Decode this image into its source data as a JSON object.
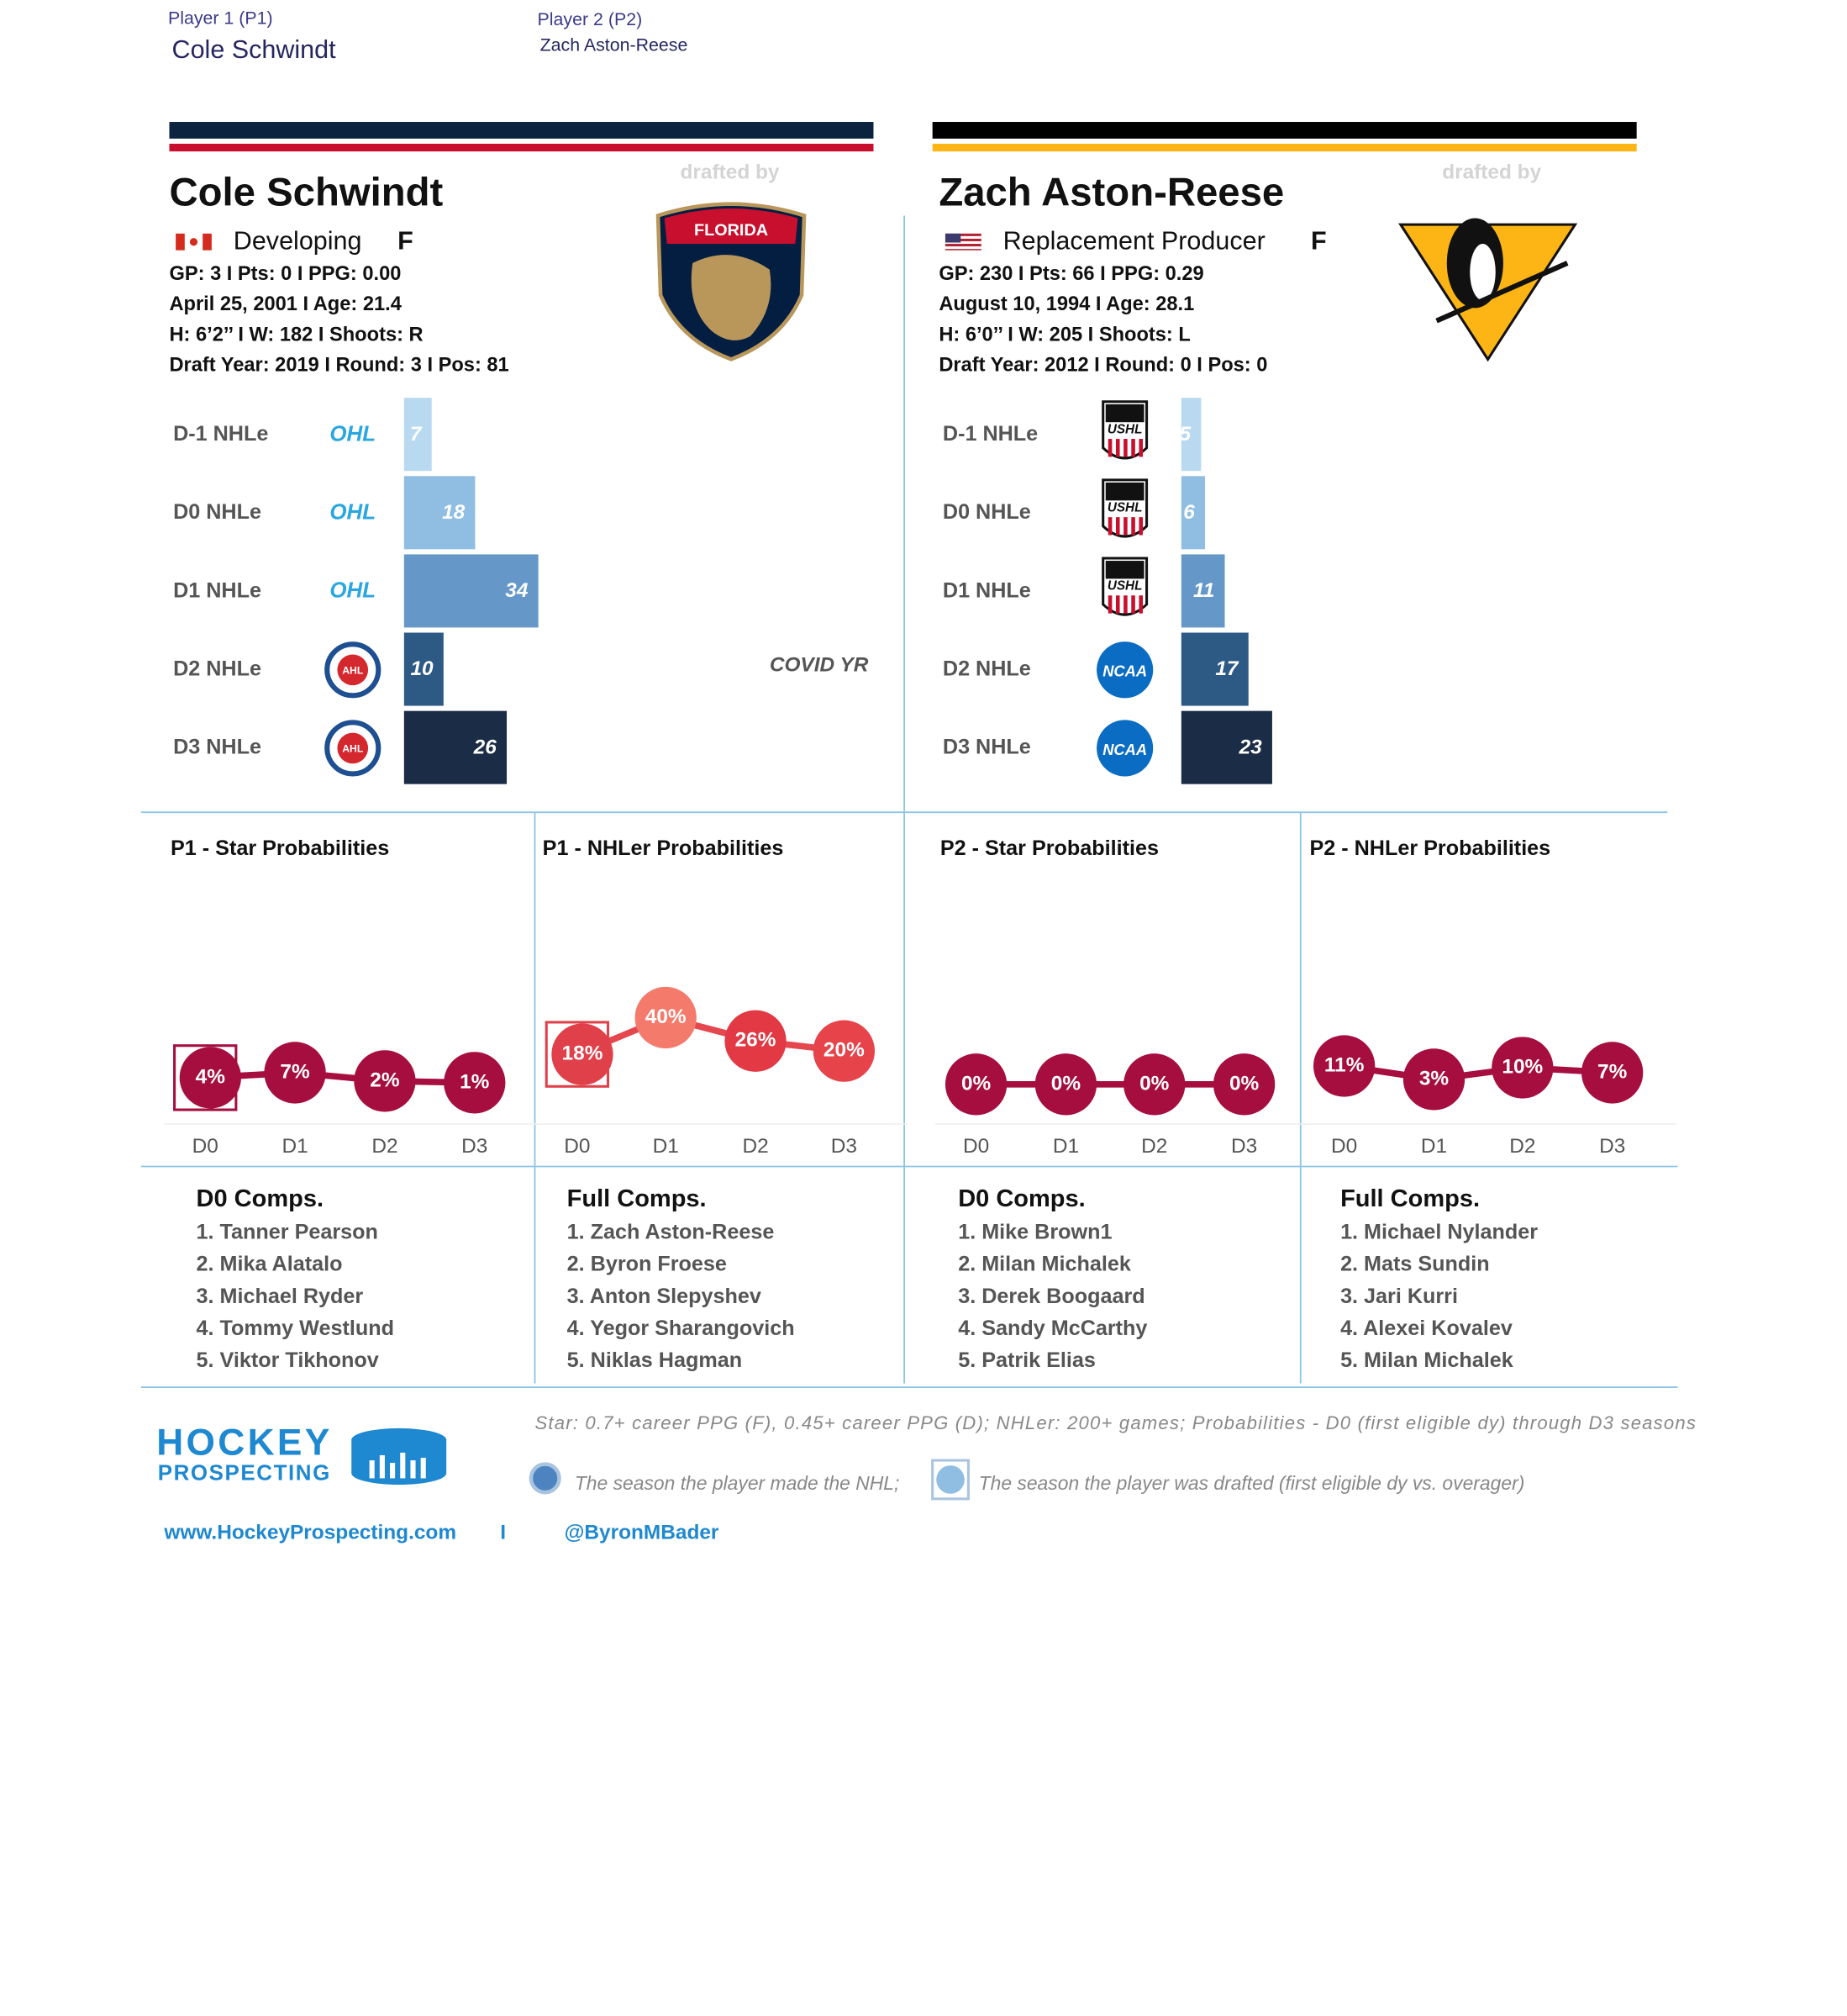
{
  "selectors": [
    {
      "label": "Player 1 (P1)",
      "value": "Cole Schwindt"
    },
    {
      "label": "Player 2 (P2)",
      "value": "Zach Aston-Reese"
    }
  ],
  "players": [
    {
      "name": "Cole Schwindt",
      "status": "Developing",
      "position": "F",
      "lines": [
        "GP: 3 I Pts: 0 I PPG: 0.00",
        "April 25, 2001 I Age: 21.4",
        "H: 6’2’’ I W: 182 I Shoots: R",
        "Draft Year: 2019 I Round: 3 I Pos: 81"
      ],
      "drafted_by": "drafted by",
      "team_logo_text": "FLORIDA"
    },
    {
      "name": "Zach Aston-Reese",
      "status": "Replacement Producer",
      "position": "F",
      "lines": [
        "GP: 230 I Pts: 66 I PPG: 0.29",
        "August 10, 1994 I Age: 28.1",
        "H: 6’0’’ I W: 205 I Shoots: L",
        "Draft Year: 2012 I Round: 0 I Pos: 0"
      ],
      "drafted_by": "drafted by"
    }
  ],
  "chart_data": [
    {
      "type": "bar",
      "orientation": "horizontal",
      "categories": [
        "D-1 NHLe",
        "D0 NHLe",
        "D1 NHLe",
        "D2 NHLe",
        "D3 NHLe"
      ],
      "logos": [
        "OHL",
        "OHL",
        "OHL",
        "AHL",
        "AHL"
      ],
      "values": [
        7,
        18,
        34,
        10,
        26
      ],
      "colors": [
        "#b8d9f0",
        "#8fbee2",
        "#6598c8",
        "#2d5985",
        "#1b2c46"
      ],
      "xlim": [
        0,
        100
      ],
      "annotation": "COVID YR"
    },
    {
      "type": "bar",
      "orientation": "horizontal",
      "categories": [
        "D-1 NHLe",
        "D0 NHLe",
        "D1 NHLe",
        "D2 NHLe",
        "D3 NHLe"
      ],
      "logos": [
        "USHL",
        "USHL",
        "USHL",
        "NCAA",
        "NCAA"
      ],
      "values": [
        5,
        6,
        11,
        17,
        23
      ],
      "colors": [
        "#b8d9f0",
        "#8fbee2",
        "#6598c8",
        "#2d5985",
        "#1b2c46"
      ],
      "xlim": [
        0,
        100
      ]
    },
    {
      "type": "line",
      "title": "P1 - Star Probabilities",
      "categories": [
        "D0",
        "D1",
        "D2",
        "D3"
      ],
      "values": [
        4,
        7,
        2,
        1
      ],
      "value_labels": [
        "4%",
        "7%",
        "2%",
        "1%"
      ],
      "color": "#a50e3f",
      "point_colors": [
        "#a50e3f",
        "#a50e3f",
        "#a50e3f",
        "#a50e3f"
      ],
      "ylim": [
        0,
        100
      ],
      "drafted": [
        true,
        false,
        false,
        false
      ]
    },
    {
      "type": "line",
      "title": "P1 - NHLer Probabilities",
      "categories": [
        "D0",
        "D1",
        "D2",
        "D3"
      ],
      "values": [
        18,
        40,
        26,
        20
      ],
      "value_labels": [
        "18%",
        "40%",
        "26%",
        "20%"
      ],
      "color": "#e4474e",
      "point_colors": [
        "#e0404a",
        "#f47a6c",
        "#e23944",
        "#e6434b"
      ],
      "ylim": [
        0,
        100
      ],
      "drafted": [
        true,
        false,
        false,
        false
      ]
    },
    {
      "type": "line",
      "title": "P2 - Star Probabilities",
      "categories": [
        "D0",
        "D1",
        "D2",
        "D3"
      ],
      "values": [
        0,
        0,
        0,
        0
      ],
      "value_labels": [
        "0%",
        "0%",
        "0%",
        "0%"
      ],
      "color": "#a50e3f",
      "point_colors": [
        "#a50e3f",
        "#a50e3f",
        "#a50e3f",
        "#a50e3f"
      ],
      "ylim": [
        0,
        100
      ],
      "drafted": [
        false,
        false,
        false,
        false
      ]
    },
    {
      "type": "line",
      "title": "P2 - NHLer Probabilities",
      "categories": [
        "D0",
        "D1",
        "D2",
        "D3"
      ],
      "values": [
        11,
        3,
        10,
        7
      ],
      "value_labels": [
        "11%",
        "3%",
        "10%",
        "7%"
      ],
      "color": "#a50e3f",
      "point_colors": [
        "#a50e3f",
        "#a50e3f",
        "#a50e3f",
        "#a50e3f"
      ],
      "ylim": [
        0,
        100
      ],
      "drafted": [
        false,
        false,
        false,
        false
      ]
    }
  ],
  "comps": [
    {
      "title": "D0 Comps.",
      "names": [
        "1. Tanner Pearson",
        "2. Mika Alatalo",
        "3. Michael Ryder",
        "4. Tommy Westlund",
        "5. Viktor Tikhonov"
      ]
    },
    {
      "title": "Full Comps.",
      "names": [
        "1. Zach Aston-Reese",
        "2. Byron Froese",
        "3. Anton Slepyshev",
        "4. Yegor Sharangovich",
        "5. Niklas Hagman"
      ]
    },
    {
      "title": "D0 Comps.",
      "names": [
        "1. Mike Brown1",
        "2. Milan Michalek",
        "3. Derek Boogaard",
        "4. Sandy McCarthy",
        "5. Patrik Elias"
      ]
    },
    {
      "title": "Full Comps.",
      "names": [
        "1. Michael Nylander",
        "2. Mats Sundin",
        "3. Jari Kurri",
        "4. Alexei Kovalev",
        "5. Milan Michalek"
      ]
    }
  ],
  "notes": {
    "definition": "Star: 0.7+ career PPG (F), 0.45+ career PPG (D); NHLer: 200+ games; Probabilities - D0 (first eligible dy) through D3 seasons",
    "made_nhl": "The season the player made the NHL;",
    "drafted": "The season the player was drafted (first eligible dy vs. overager)"
  },
  "brand": {
    "line1": "HOCKEY",
    "line2": "PROSPECTING"
  },
  "footer": {
    "website": "www.HockeyProspecting.com",
    "separator": "I",
    "twitter": "@ByronMBader"
  }
}
